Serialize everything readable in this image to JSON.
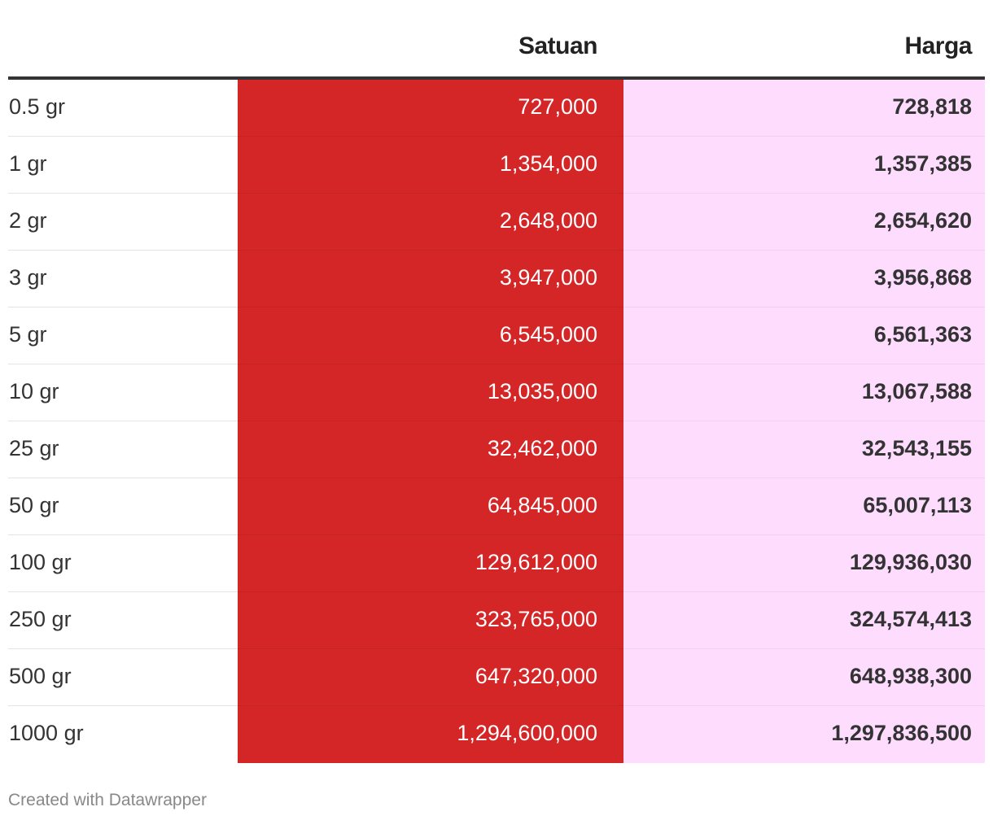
{
  "table": {
    "headers": {
      "label": "",
      "satuan": "Satuan",
      "harga": "Harga"
    },
    "rows": [
      {
        "label": "0.5 gr",
        "satuan": "727,000",
        "harga": "728,818"
      },
      {
        "label": "1 gr",
        "satuan": "1,354,000",
        "harga": "1,357,385"
      },
      {
        "label": "2 gr",
        "satuan": "2,648,000",
        "harga": "2,654,620"
      },
      {
        "label": "3 gr",
        "satuan": "3,947,000",
        "harga": "3,956,868"
      },
      {
        "label": "5 gr",
        "satuan": "6,545,000",
        "harga": "6,561,363"
      },
      {
        "label": "10 gr",
        "satuan": "13,035,000",
        "harga": "13,067,588"
      },
      {
        "label": "25 gr",
        "satuan": "32,462,000",
        "harga": "32,543,155"
      },
      {
        "label": "50 gr",
        "satuan": "64,845,000",
        "harga": "65,007,113"
      },
      {
        "label": "100 gr",
        "satuan": "129,612,000",
        "harga": "129,936,030"
      },
      {
        "label": "250 gr",
        "satuan": "323,765,000",
        "harga": "324,574,413"
      },
      {
        "label": "500 gr",
        "satuan": "647,320,000",
        "harga": "648,938,300"
      },
      {
        "label": "1000 gr",
        "satuan": "1,294,600,000",
        "harga": "1,297,836,500"
      }
    ],
    "colors": {
      "satuan_bg": "#d42527",
      "harga_bg": "#fedcfe",
      "header_rule": "#333333"
    }
  },
  "chart_data": {
    "type": "table",
    "columns": [
      "",
      "Satuan",
      "Harga"
    ],
    "rows": [
      [
        "0.5 gr",
        727000,
        728818
      ],
      [
        "1 gr",
        1354000,
        1357385
      ],
      [
        "2 gr",
        2648000,
        2654620
      ],
      [
        "3 gr",
        3947000,
        3956868
      ],
      [
        "5 gr",
        6545000,
        6561363
      ],
      [
        "10 gr",
        13035000,
        13067588
      ],
      [
        "25 gr",
        32462000,
        32543155
      ],
      [
        "50 gr",
        64845000,
        65007113
      ],
      [
        "100 gr",
        129612000,
        129936030
      ],
      [
        "250 gr",
        323765000,
        324574413
      ],
      [
        "500 gr",
        647320000,
        648938300
      ],
      [
        "1000 gr",
        1294600000,
        1297836500
      ]
    ]
  },
  "footer": {
    "credit": "Created with Datawrapper"
  }
}
